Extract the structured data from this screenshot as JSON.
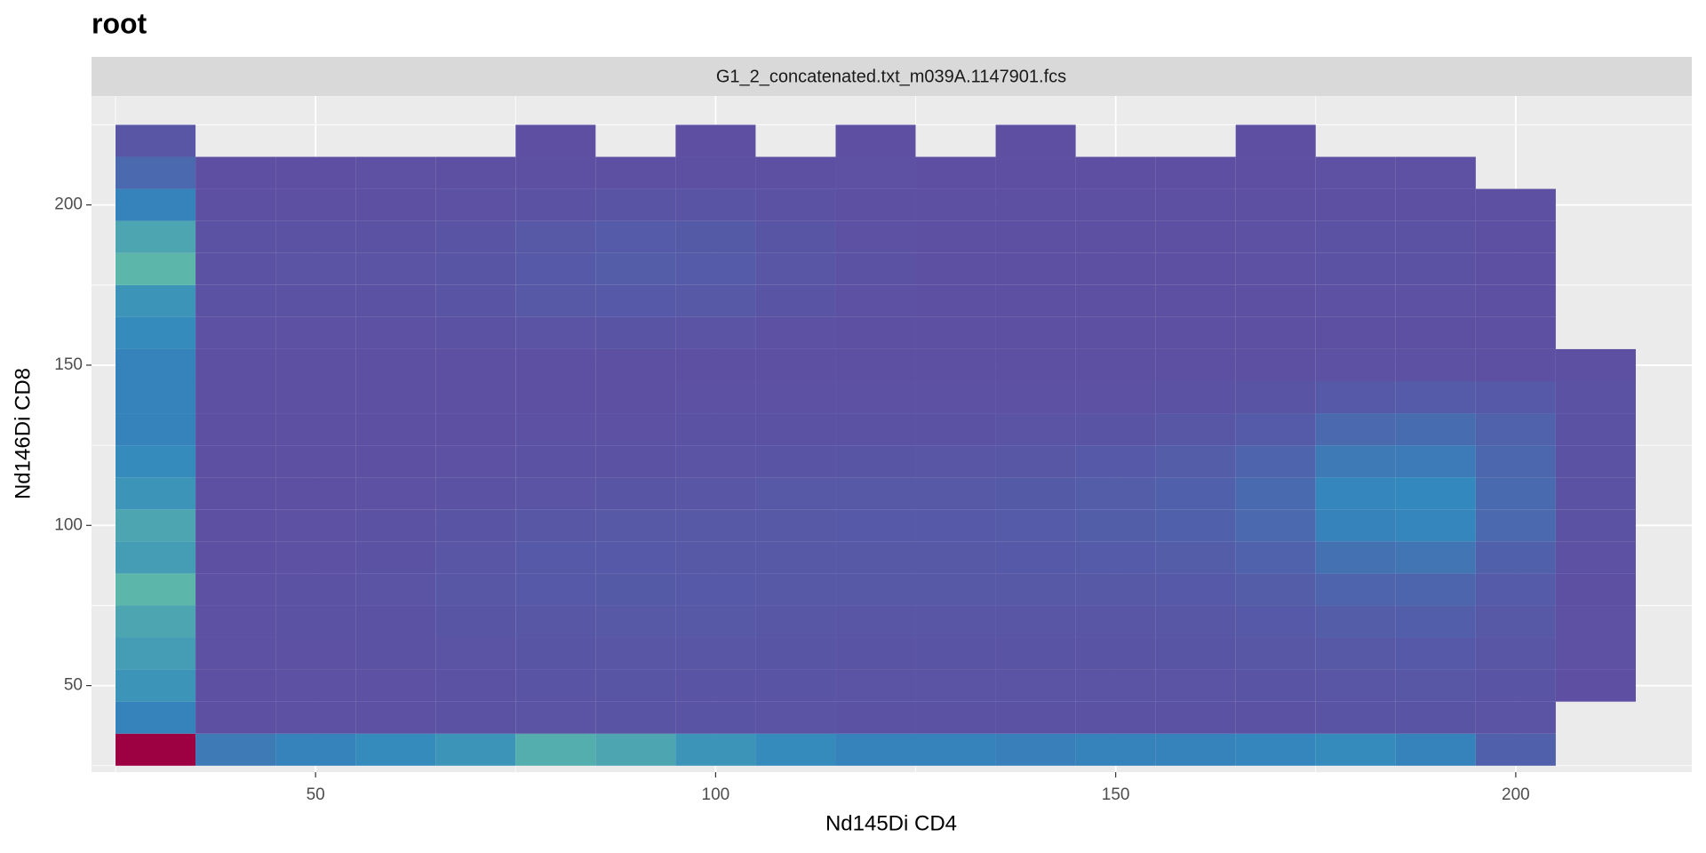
{
  "chart_data": {
    "type": "bin2d",
    "title": "root",
    "facet": "G1_2_concatenated.txt_m039A.1147901.fcs",
    "x_label": "Nd145Di CD4",
    "y_label": "Nd146Di CD8",
    "xlim": [
      22,
      222
    ],
    "ylim": [
      23,
      234
    ],
    "xticks": [
      50,
      100,
      150,
      200
    ],
    "yticks": [
      50,
      100,
      150,
      200
    ],
    "xminor": [
      25,
      75,
      125,
      175
    ],
    "yminor": [
      25,
      75,
      125,
      175,
      225
    ],
    "grid": true,
    "log_scale": false,
    "colors": [
      "#5e4fa2",
      "#3288bd",
      "#66c2a5",
      "#abdda4",
      "#e6f598",
      "#fee08b",
      "#fdae61",
      "#f46d43",
      "#d53e4f",
      "#9e0142"
    ],
    "x": [
      30,
      40,
      50,
      60,
      70,
      80,
      90,
      100,
      110,
      120,
      130,
      140,
      150,
      160,
      170,
      180,
      190,
      200,
      210
    ],
    "y": [
      30,
      40,
      50,
      60,
      70,
      80,
      90,
      100,
      110,
      120,
      130,
      140,
      150,
      160,
      170,
      180,
      190,
      200,
      210,
      220
    ],
    "counts": [
      [
        3000,
        250,
        300,
        350,
        400,
        550,
        500,
        400,
        350,
        300,
        300,
        280,
        300,
        300,
        320,
        350,
        300,
        100,
        0
      ],
      [
        300,
        8,
        10,
        10,
        15,
        25,
        30,
        30,
        25,
        20,
        20,
        20,
        20,
        20,
        20,
        30,
        30,
        25,
        0
      ],
      [
        400,
        8,
        10,
        12,
        20,
        30,
        35,
        30,
        30,
        25,
        25,
        25,
        25,
        25,
        30,
        40,
        45,
        30,
        2
      ],
      [
        450,
        10,
        12,
        15,
        25,
        35,
        40,
        40,
        35,
        30,
        30,
        30,
        30,
        35,
        45,
        55,
        60,
        40,
        3
      ],
      [
        500,
        10,
        15,
        20,
        35,
        45,
        50,
        50,
        45,
        40,
        40,
        40,
        40,
        45,
        60,
        80,
        90,
        50,
        3
      ],
      [
        600,
        10,
        15,
        25,
        45,
        60,
        65,
        60,
        55,
        50,
        50,
        50,
        55,
        60,
        80,
        120,
        130,
        70,
        5
      ],
      [
        450,
        8,
        12,
        20,
        40,
        60,
        60,
        55,
        55,
        55,
        55,
        60,
        70,
        80,
        110,
        200,
        220,
        100,
        10
      ],
      [
        500,
        8,
        10,
        15,
        30,
        45,
        50,
        50,
        55,
        60,
        60,
        70,
        85,
        100,
        150,
        300,
        320,
        150,
        15
      ],
      [
        400,
        6,
        8,
        10,
        15,
        25,
        35,
        40,
        50,
        55,
        55,
        65,
        80,
        100,
        160,
        320,
        340,
        160,
        15
      ],
      [
        350,
        5,
        6,
        8,
        10,
        15,
        20,
        25,
        30,
        35,
        40,
        45,
        60,
        80,
        120,
        250,
        260,
        140,
        20
      ],
      [
        300,
        4,
        5,
        6,
        8,
        10,
        12,
        15,
        18,
        20,
        20,
        25,
        30,
        45,
        70,
        150,
        170,
        110,
        20
      ],
      [
        300,
        4,
        4,
        5,
        6,
        8,
        8,
        10,
        10,
        10,
        10,
        10,
        12,
        18,
        30,
        60,
        70,
        60,
        15
      ],
      [
        300,
        5,
        5,
        6,
        6,
        8,
        8,
        8,
        6,
        6,
        5,
        5,
        6,
        6,
        8,
        12,
        10,
        8,
        5
      ],
      [
        350,
        10,
        10,
        12,
        15,
        25,
        30,
        25,
        12,
        6,
        5,
        5,
        5,
        5,
        5,
        6,
        6,
        5,
        0
      ],
      [
        400,
        15,
        18,
        20,
        30,
        50,
        60,
        55,
        30,
        10,
        6,
        5,
        5,
        5,
        6,
        10,
        10,
        6,
        0
      ],
      [
        600,
        20,
        25,
        25,
        35,
        60,
        80,
        70,
        40,
        15,
        8,
        6,
        6,
        6,
        10,
        20,
        20,
        8,
        0
      ],
      [
        500,
        15,
        20,
        20,
        30,
        50,
        70,
        65,
        35,
        12,
        8,
        6,
        5,
        6,
        10,
        18,
        18,
        6,
        0
      ],
      [
        300,
        5,
        6,
        8,
        12,
        20,
        30,
        30,
        20,
        8,
        5,
        4,
        4,
        5,
        6,
        8,
        8,
        4,
        0
      ],
      [
        150,
        2,
        2,
        3,
        4,
        6,
        8,
        8,
        6,
        3,
        2,
        2,
        2,
        2,
        2,
        3,
        3,
        0,
        0
      ],
      [
        40,
        0,
        0,
        0,
        0,
        1,
        0,
        1,
        0,
        1,
        0,
        1,
        0,
        0,
        1,
        0,
        0,
        0,
        0
      ]
    ]
  }
}
